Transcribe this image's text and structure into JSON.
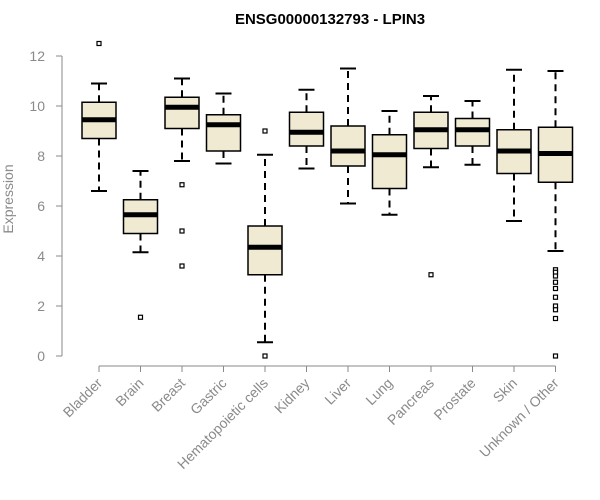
{
  "chart_data": {
    "type": "box",
    "title": "ENSG00000132793 - LPIN3",
    "ylabel": "Expression",
    "xlabel": "",
    "ylim": [
      0,
      12.6
    ],
    "yticks": [
      "0",
      "2",
      "4",
      "6",
      "8",
      "10",
      "12"
    ],
    "box_fill": "#f0ead2",
    "categories": [
      "Bladder",
      "Brain",
      "Breast",
      "Gastric",
      "Hematopoietic cells",
      "Kidney",
      "Liver",
      "Lung",
      "Pancreas",
      "Prostate",
      "Skin",
      "Unknown / Other"
    ],
    "boxes": [
      {
        "whisker_low": 6.6,
        "q1": 8.7,
        "median": 9.45,
        "q3": 10.15,
        "whisker_high": 10.9,
        "outliers": [
          12.5
        ]
      },
      {
        "whisker_low": 4.15,
        "q1": 4.9,
        "median": 5.65,
        "q3": 6.25,
        "whisker_high": 7.4,
        "outliers": [
          1.55
        ]
      },
      {
        "whisker_low": 7.8,
        "q1": 9.1,
        "median": 9.95,
        "q3": 10.35,
        "whisker_high": 11.1,
        "outliers": [
          6.85,
          5.0,
          3.6
        ]
      },
      {
        "whisker_low": 7.7,
        "q1": 8.2,
        "median": 9.25,
        "q3": 9.65,
        "whisker_high": 10.5,
        "outliers": []
      },
      {
        "whisker_low": 0.55,
        "q1": 3.25,
        "median": 4.35,
        "q3": 5.2,
        "whisker_high": 8.05,
        "outliers": [
          9.0,
          0.0
        ]
      },
      {
        "whisker_low": 7.5,
        "q1": 8.4,
        "median": 8.95,
        "q3": 9.75,
        "whisker_high": 10.65,
        "outliers": []
      },
      {
        "whisker_low": 6.1,
        "q1": 7.6,
        "median": 8.2,
        "q3": 9.2,
        "whisker_high": 11.5,
        "outliers": []
      },
      {
        "whisker_low": 5.65,
        "q1": 6.7,
        "median": 8.05,
        "q3": 8.85,
        "whisker_high": 9.8,
        "outliers": []
      },
      {
        "whisker_low": 7.55,
        "q1": 8.3,
        "median": 9.05,
        "q3": 9.75,
        "whisker_high": 10.4,
        "outliers": [
          3.25
        ]
      },
      {
        "whisker_low": 7.65,
        "q1": 8.4,
        "median": 9.05,
        "q3": 9.5,
        "whisker_high": 10.2,
        "outliers": []
      },
      {
        "whisker_low": 5.4,
        "q1": 7.3,
        "median": 8.2,
        "q3": 9.05,
        "whisker_high": 11.45,
        "outliers": []
      },
      {
        "whisker_low": 4.2,
        "q1": 6.95,
        "median": 8.1,
        "q3": 9.15,
        "whisker_high": 11.4,
        "outliers": [
          3.45,
          3.35,
          3.2,
          2.95,
          2.7,
          2.35,
          2.0,
          1.85,
          1.5,
          0.0
        ]
      }
    ]
  }
}
